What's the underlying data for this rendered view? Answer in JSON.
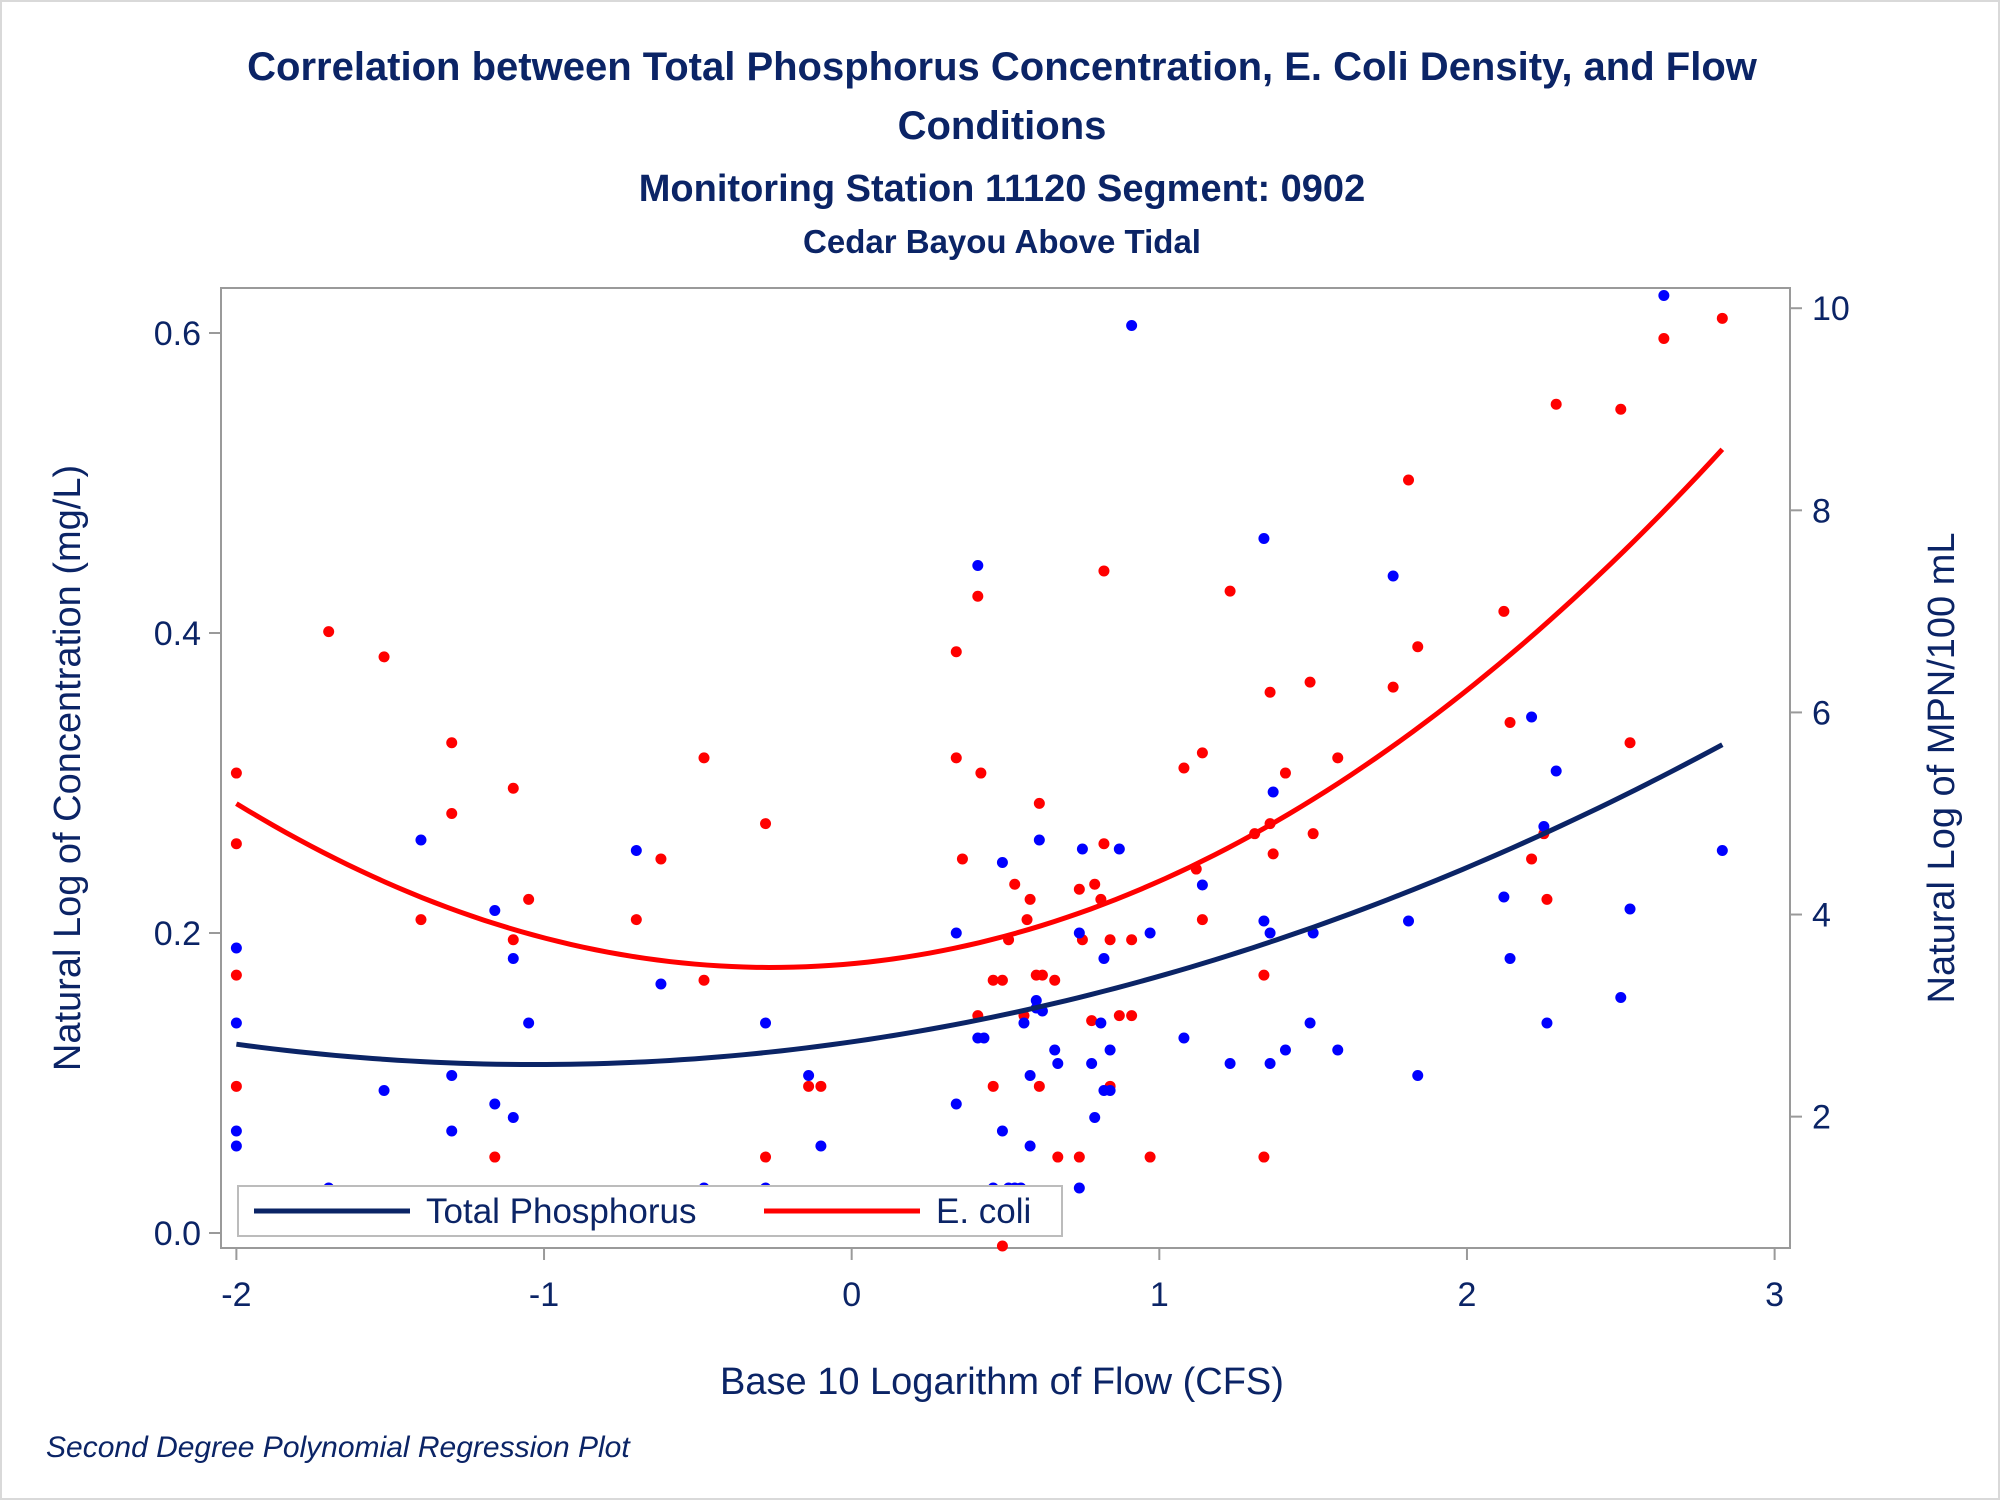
{
  "colors": {
    "text": "#0b2466",
    "phosphorus": "#0b2466",
    "phosphorus_points": "#0000ff",
    "ecoli": "#ff0000",
    "frame": "#9a9a9a",
    "legend_border": "#bcbcbc"
  },
  "chart_data": {
    "type": "scatter",
    "title_line1": "Correlation between Total Phosphorus Concentration, E. Coli Density, and Flow",
    "title_line2": "Conditions",
    "subtitle": "Monitoring Station 11120 Segment: 0902",
    "subtitle2": "Cedar Bayou Above Tidal",
    "xlabel": "Base 10 Logarithm of Flow (CFS)",
    "ylabel_left": "Natural Log of Concentration (mg/L)",
    "ylabel_right": "Natural Log of MPN/100 mL",
    "footnote": "Second Degree Polynomial Regression Plot",
    "xlim": [
      -2.05,
      3.05
    ],
    "ylim_left": [
      -0.01,
      0.63
    ],
    "ylim_right": [
      0.7,
      10.2
    ],
    "x_ticks": [
      -2,
      -1,
      0,
      1,
      2,
      3
    ],
    "x_tick_labels": [
      "-2",
      "-1",
      "0",
      "1",
      "2",
      "3"
    ],
    "y_left_ticks": [
      0.0,
      0.2,
      0.4,
      0.6
    ],
    "y_left_tick_labels": [
      "0.0",
      "0.2",
      "0.4",
      "0.6"
    ],
    "y_right_ticks": [
      2,
      4,
      6,
      8,
      10
    ],
    "y_right_tick_labels": [
      "2",
      "4",
      "6",
      "8",
      "10"
    ],
    "grid": false,
    "legend_position": "bottom-left inside",
    "series": [
      {
        "name": "Total Phosphorus",
        "axis": "left",
        "fit": {
          "degree": 2,
          "x_range": [
            -2.0,
            2.83
          ],
          "points": [
            [
              -2.0,
              0.126
            ],
            [
              -1.0,
              0.112
            ],
            [
              0.0,
              0.128
            ],
            [
              1.0,
              0.17
            ],
            [
              2.0,
              0.245
            ],
            [
              2.83,
              0.325
            ]
          ]
        },
        "points": [
          [
            -2.0,
            0.19
          ],
          [
            -2.0,
            0.14
          ],
          [
            -2.0,
            0.068
          ],
          [
            -2.0,
            0.058
          ],
          [
            -1.7,
            0.03
          ],
          [
            -1.52,
            0.095
          ],
          [
            -1.4,
            0.262
          ],
          [
            -1.3,
            0.105
          ],
          [
            -1.3,
            0.068
          ],
          [
            -1.16,
            0.215
          ],
          [
            -1.16,
            0.086
          ],
          [
            -1.1,
            0.183
          ],
          [
            -1.1,
            0.077
          ],
          [
            -1.05,
            0.14
          ],
          [
            -0.7,
            0.255
          ],
          [
            -0.62,
            0.166
          ],
          [
            -0.48,
            0.03
          ],
          [
            -0.28,
            0.14
          ],
          [
            -0.28,
            0.03
          ],
          [
            -0.14,
            0.105
          ],
          [
            -0.1,
            0.058
          ],
          [
            0.34,
            0.2
          ],
          [
            0.34,
            0.086
          ],
          [
            0.41,
            0.445
          ],
          [
            0.41,
            0.13
          ],
          [
            0.43,
            0.13
          ],
          [
            0.46,
            0.03
          ],
          [
            0.49,
            0.247
          ],
          [
            0.49,
            0.068
          ],
          [
            0.51,
            0.03
          ],
          [
            0.53,
            0.03
          ],
          [
            0.55,
            0.03
          ],
          [
            0.56,
            0.14
          ],
          [
            0.58,
            0.058
          ],
          [
            0.58,
            0.105
          ],
          [
            0.6,
            0.15
          ],
          [
            0.6,
            0.155
          ],
          [
            0.61,
            0.262
          ],
          [
            0.62,
            0.148
          ],
          [
            0.66,
            0.122
          ],
          [
            0.67,
            0.113
          ],
          [
            0.74,
            0.03
          ],
          [
            0.74,
            0.2
          ],
          [
            0.75,
            0.256
          ],
          [
            0.78,
            0.113
          ],
          [
            0.79,
            0.077
          ],
          [
            0.81,
            0.14
          ],
          [
            0.82,
            0.095
          ],
          [
            0.82,
            0.183
          ],
          [
            0.84,
            0.122
          ],
          [
            0.84,
            0.095
          ],
          [
            0.87,
            0.256
          ],
          [
            0.91,
            0.605
          ],
          [
            0.97,
            0.2
          ],
          [
            1.08,
            0.13
          ],
          [
            1.14,
            0.232
          ],
          [
            1.23,
            0.113
          ],
          [
            1.34,
            0.208
          ],
          [
            1.34,
            0.463
          ],
          [
            1.36,
            0.113
          ],
          [
            1.36,
            0.2
          ],
          [
            1.37,
            0.294
          ],
          [
            1.41,
            0.122
          ],
          [
            1.49,
            0.14
          ],
          [
            1.5,
            0.2
          ],
          [
            1.58,
            0.122
          ],
          [
            1.76,
            0.438
          ],
          [
            1.81,
            0.208
          ],
          [
            1.84,
            0.105
          ],
          [
            2.12,
            0.224
          ],
          [
            2.14,
            0.183
          ],
          [
            2.21,
            0.344
          ],
          [
            2.25,
            0.271
          ],
          [
            2.26,
            0.14
          ],
          [
            2.29,
            0.308
          ],
          [
            2.5,
            0.157
          ],
          [
            2.53,
            0.216
          ],
          [
            2.64,
            0.625
          ],
          [
            2.83,
            0.255
          ]
        ]
      },
      {
        "name": "E. coli",
        "axis": "right",
        "fit": {
          "degree": 2,
          "x_range": [
            -2.0,
            2.83
          ],
          "points": [
            [
              -2.0,
              5.1
            ],
            [
              -1.0,
              3.8
            ],
            [
              -0.3,
              3.43
            ],
            [
              0.0,
              3.48
            ],
            [
              1.0,
              4.4
            ],
            [
              2.0,
              6.2
            ],
            [
              2.83,
              8.6
            ]
          ]
        },
        "points": [
          [
            -2.0,
            5.4
          ],
          [
            -2.0,
            4.7
          ],
          [
            -2.0,
            3.4
          ],
          [
            -2.0,
            2.3
          ],
          [
            -1.7,
            6.8
          ],
          [
            -1.52,
            6.55
          ],
          [
            -1.4,
            3.95
          ],
          [
            -1.3,
            5.7
          ],
          [
            -1.3,
            5.0
          ],
          [
            -1.16,
            1.6
          ],
          [
            -1.1,
            5.25
          ],
          [
            -1.1,
            3.75
          ],
          [
            -1.05,
            4.15
          ],
          [
            -0.7,
            3.95
          ],
          [
            -0.62,
            4.55
          ],
          [
            -0.48,
            3.35
          ],
          [
            -0.48,
            5.55
          ],
          [
            -0.28,
            4.9
          ],
          [
            -0.28,
            1.6
          ],
          [
            -0.14,
            2.3
          ],
          [
            -0.1,
            2.3
          ],
          [
            0.34,
            6.6
          ],
          [
            0.34,
            5.55
          ],
          [
            0.36,
            4.55
          ],
          [
            0.41,
            7.15
          ],
          [
            0.41,
            3.0
          ],
          [
            0.42,
            5.4
          ],
          [
            0.46,
            2.3
          ],
          [
            0.46,
            3.35
          ],
          [
            0.49,
            3.35
          ],
          [
            0.49,
            0.72
          ],
          [
            0.51,
            3.75
          ],
          [
            0.53,
            4.3
          ],
          [
            0.56,
            3.0
          ],
          [
            0.57,
            3.95
          ],
          [
            0.58,
            4.15
          ],
          [
            0.6,
            3.4
          ],
          [
            0.61,
            2.3
          ],
          [
            0.61,
            5.1
          ],
          [
            0.62,
            3.4
          ],
          [
            0.66,
            3.35
          ],
          [
            0.67,
            1.6
          ],
          [
            0.74,
            4.25
          ],
          [
            0.74,
            1.6
          ],
          [
            0.75,
            3.75
          ],
          [
            0.78,
            2.95
          ],
          [
            0.79,
            4.3
          ],
          [
            0.81,
            4.15
          ],
          [
            0.82,
            4.7
          ],
          [
            0.82,
            7.4
          ],
          [
            0.84,
            3.75
          ],
          [
            0.84,
            2.3
          ],
          [
            0.87,
            3.0
          ],
          [
            0.91,
            3.0
          ],
          [
            0.91,
            3.75
          ],
          [
            0.97,
            1.6
          ],
          [
            1.08,
            5.45
          ],
          [
            1.12,
            4.45
          ],
          [
            1.14,
            5.6
          ],
          [
            1.14,
            3.95
          ],
          [
            1.23,
            7.2
          ],
          [
            1.31,
            4.8
          ],
          [
            1.34,
            1.6
          ],
          [
            1.34,
            3.4
          ],
          [
            1.36,
            6.2
          ],
          [
            1.36,
            4.9
          ],
          [
            1.37,
            4.6
          ],
          [
            1.41,
            5.4
          ],
          [
            1.49,
            6.3
          ],
          [
            1.5,
            4.8
          ],
          [
            1.58,
            5.55
          ],
          [
            1.76,
            6.25
          ],
          [
            1.81,
            8.3
          ],
          [
            1.84,
            6.65
          ],
          [
            2.12,
            7.0
          ],
          [
            2.14,
            5.9
          ],
          [
            2.21,
            4.55
          ],
          [
            2.25,
            4.8
          ],
          [
            2.26,
            4.15
          ],
          [
            2.29,
            9.05
          ],
          [
            2.5,
            9.0
          ],
          [
            2.53,
            5.7
          ],
          [
            2.64,
            9.7
          ],
          [
            2.83,
            9.9
          ]
        ]
      }
    ]
  }
}
